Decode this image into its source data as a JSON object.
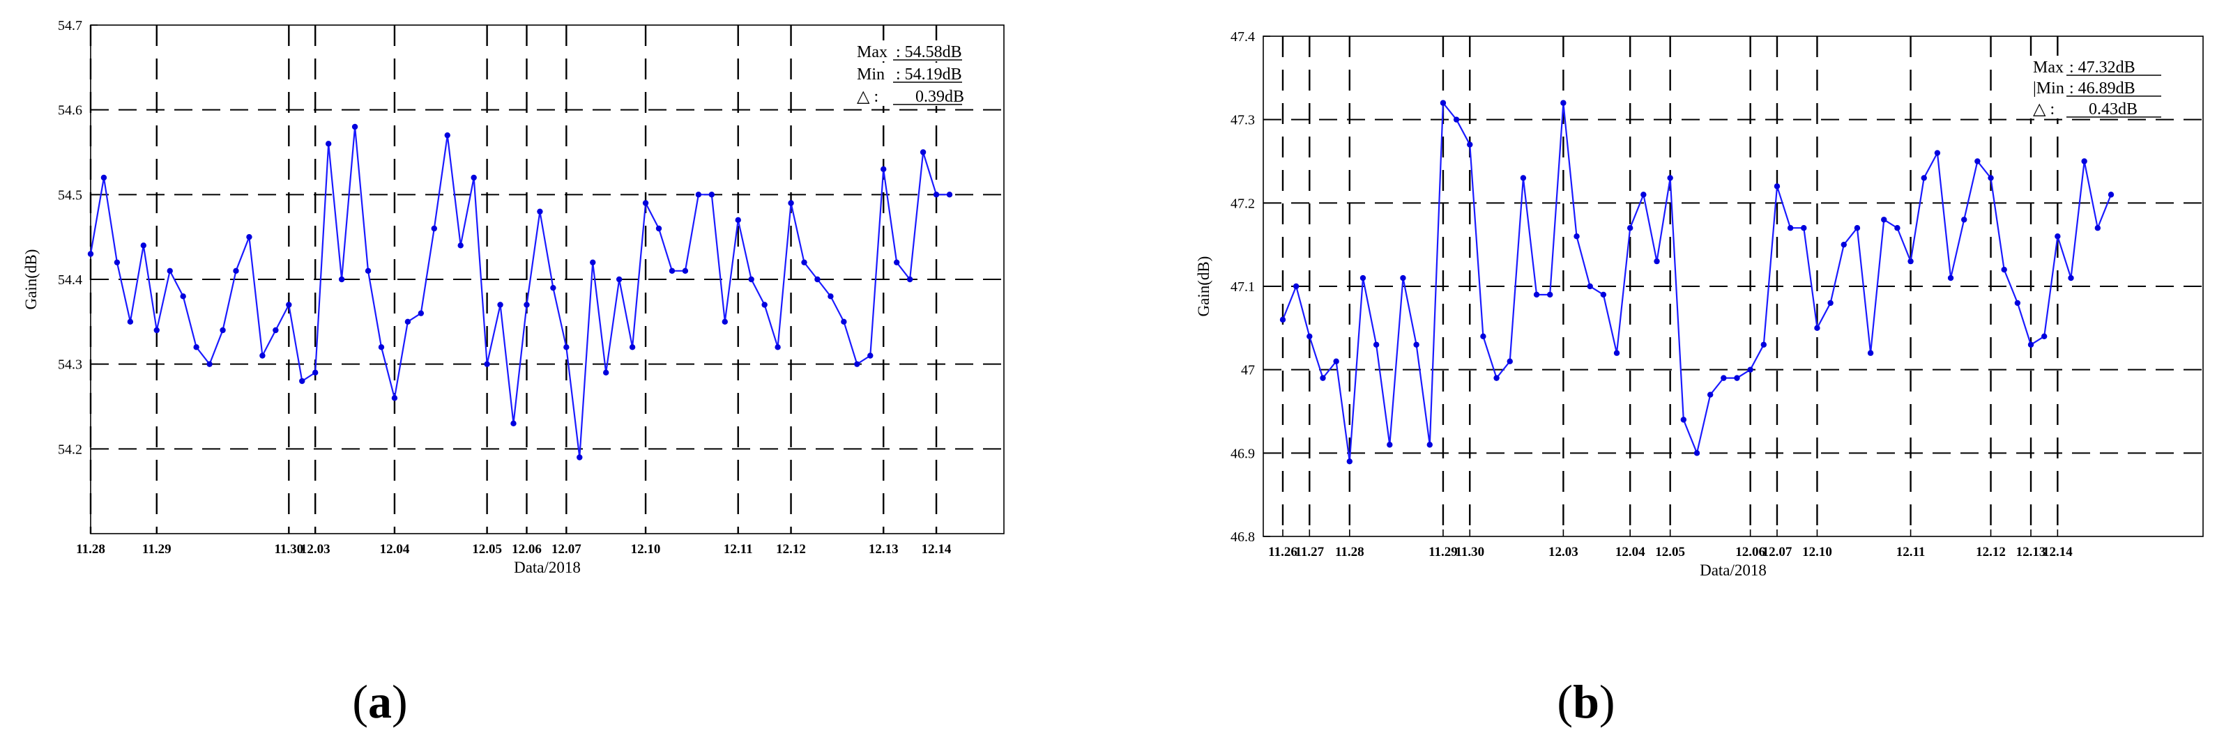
{
  "chart_data": [
    {
      "type": "line",
      "xlabel": "Data/2018",
      "ylabel": "Gain(dB)",
      "ylim": [
        54.1,
        54.7
      ],
      "yticks": [
        "54.2",
        "54.3",
        "54.4",
        "54.5",
        "54.6",
        "54.7"
      ],
      "grid": true,
      "xticks": [
        {
          "label": "11.28",
          "index": 0
        },
        {
          "label": "11.29",
          "index": 5
        },
        {
          "label": "11.30",
          "index": 15
        },
        {
          "label": "12.03",
          "index": 17
        },
        {
          "label": "12.04",
          "index": 23
        },
        {
          "label": "12.05",
          "index": 30
        },
        {
          "label": "12.06",
          "index": 33
        },
        {
          "label": "12.07",
          "index": 36
        },
        {
          "label": "12.10",
          "index": 42
        },
        {
          "label": "12.11",
          "index": 49
        },
        {
          "label": "12.12",
          "index": 53
        },
        {
          "label": "12.13",
          "index": 60
        },
        {
          "label": "12.14",
          "index": 64
        }
      ],
      "values": [
        54.43,
        54.52,
        54.42,
        54.35,
        54.44,
        54.34,
        54.41,
        54.38,
        54.32,
        54.3,
        54.34,
        54.41,
        54.45,
        54.31,
        54.34,
        54.37,
        54.28,
        54.29,
        54.56,
        54.4,
        54.58,
        54.41,
        54.32,
        54.26,
        54.35,
        54.36,
        54.46,
        54.57,
        54.44,
        54.52,
        54.3,
        54.37,
        54.23,
        54.37,
        54.48,
        54.39,
        54.32,
        54.19,
        54.42,
        54.29,
        54.4,
        54.32,
        54.49,
        54.46,
        54.41,
        54.41,
        54.5,
        54.5,
        54.35,
        54.47,
        54.4,
        54.37,
        54.32,
        54.49,
        54.42,
        54.4,
        54.38,
        54.35,
        54.3,
        54.31,
        54.53,
        54.42,
        54.4,
        54.55,
        54.5,
        54.5
      ],
      "stats": {
        "max_label": "Max",
        "max_value": ": 54.58dB",
        "min_label": "Min",
        "min_value": ": 54.19dB",
        "delta_label": "△ :",
        "delta_value": "0.39dB"
      },
      "panel_letter": "a",
      "series_color": "#0000ff"
    },
    {
      "type": "line",
      "xlabel": "Data/2018",
      "ylabel": "Gain(dB)",
      "ylim": [
        46.8,
        47.4
      ],
      "yticks": [
        "46.8",
        "46.9",
        "47",
        "47.1",
        "47.2",
        "47.3",
        "47.4"
      ],
      "grid": true,
      "xticks": [
        {
          "label": "11.26",
          "index": 0
        },
        {
          "label": "11.27",
          "index": 2
        },
        {
          "label": "11.28",
          "index": 5
        },
        {
          "label": "11.29",
          "index": 12
        },
        {
          "label": "11.30",
          "index": 14
        },
        {
          "label": "12.03",
          "index": 21
        },
        {
          "label": "12.04",
          "index": 26
        },
        {
          "label": "12.05",
          "index": 29
        },
        {
          "label": "12.06",
          "index": 35
        },
        {
          "label": "12.07",
          "index": 37
        },
        {
          "label": "12.10",
          "index": 40
        },
        {
          "label": "12.11",
          "index": 47
        },
        {
          "label": "12.12",
          "index": 53
        },
        {
          "label": "12.13",
          "index": 56
        },
        {
          "label": "12.14",
          "index": 58
        }
      ],
      "values": [
        47.06,
        47.1,
        47.04,
        46.99,
        47.01,
        46.89,
        47.11,
        47.03,
        46.91,
        47.11,
        47.03,
        46.91,
        47.32,
        47.3,
        47.27,
        47.04,
        46.99,
        47.01,
        47.23,
        47.09,
        47.09,
        47.32,
        47.16,
        47.1,
        47.09,
        47.02,
        47.17,
        47.21,
        47.13,
        47.23,
        46.94,
        46.9,
        46.97,
        46.99,
        46.99,
        47.0,
        47.03,
        47.22,
        47.17,
        47.17,
        47.05,
        47.08,
        47.15,
        47.17,
        47.02,
        47.18,
        47.17,
        47.13,
        47.23,
        47.26,
        47.11,
        47.18,
        47.25,
        47.23,
        47.12,
        47.08,
        47.03,
        47.04,
        47.16,
        47.11,
        47.25,
        47.17,
        47.21
      ],
      "stats": {
        "max_label": "Max",
        "max_value": ": 47.32dB",
        "min_label": "|Min",
        "min_value": ": 46.89dB",
        "delta_label": "△ :",
        "delta_value": "0.43dB"
      },
      "panel_letter": "b",
      "series_color": "#0000ff"
    }
  ],
  "panels": {
    "a": {
      "open": "(",
      "letter": "a",
      "close": ")"
    },
    "b": {
      "open": "(",
      "letter": "b",
      "close": ")"
    }
  }
}
